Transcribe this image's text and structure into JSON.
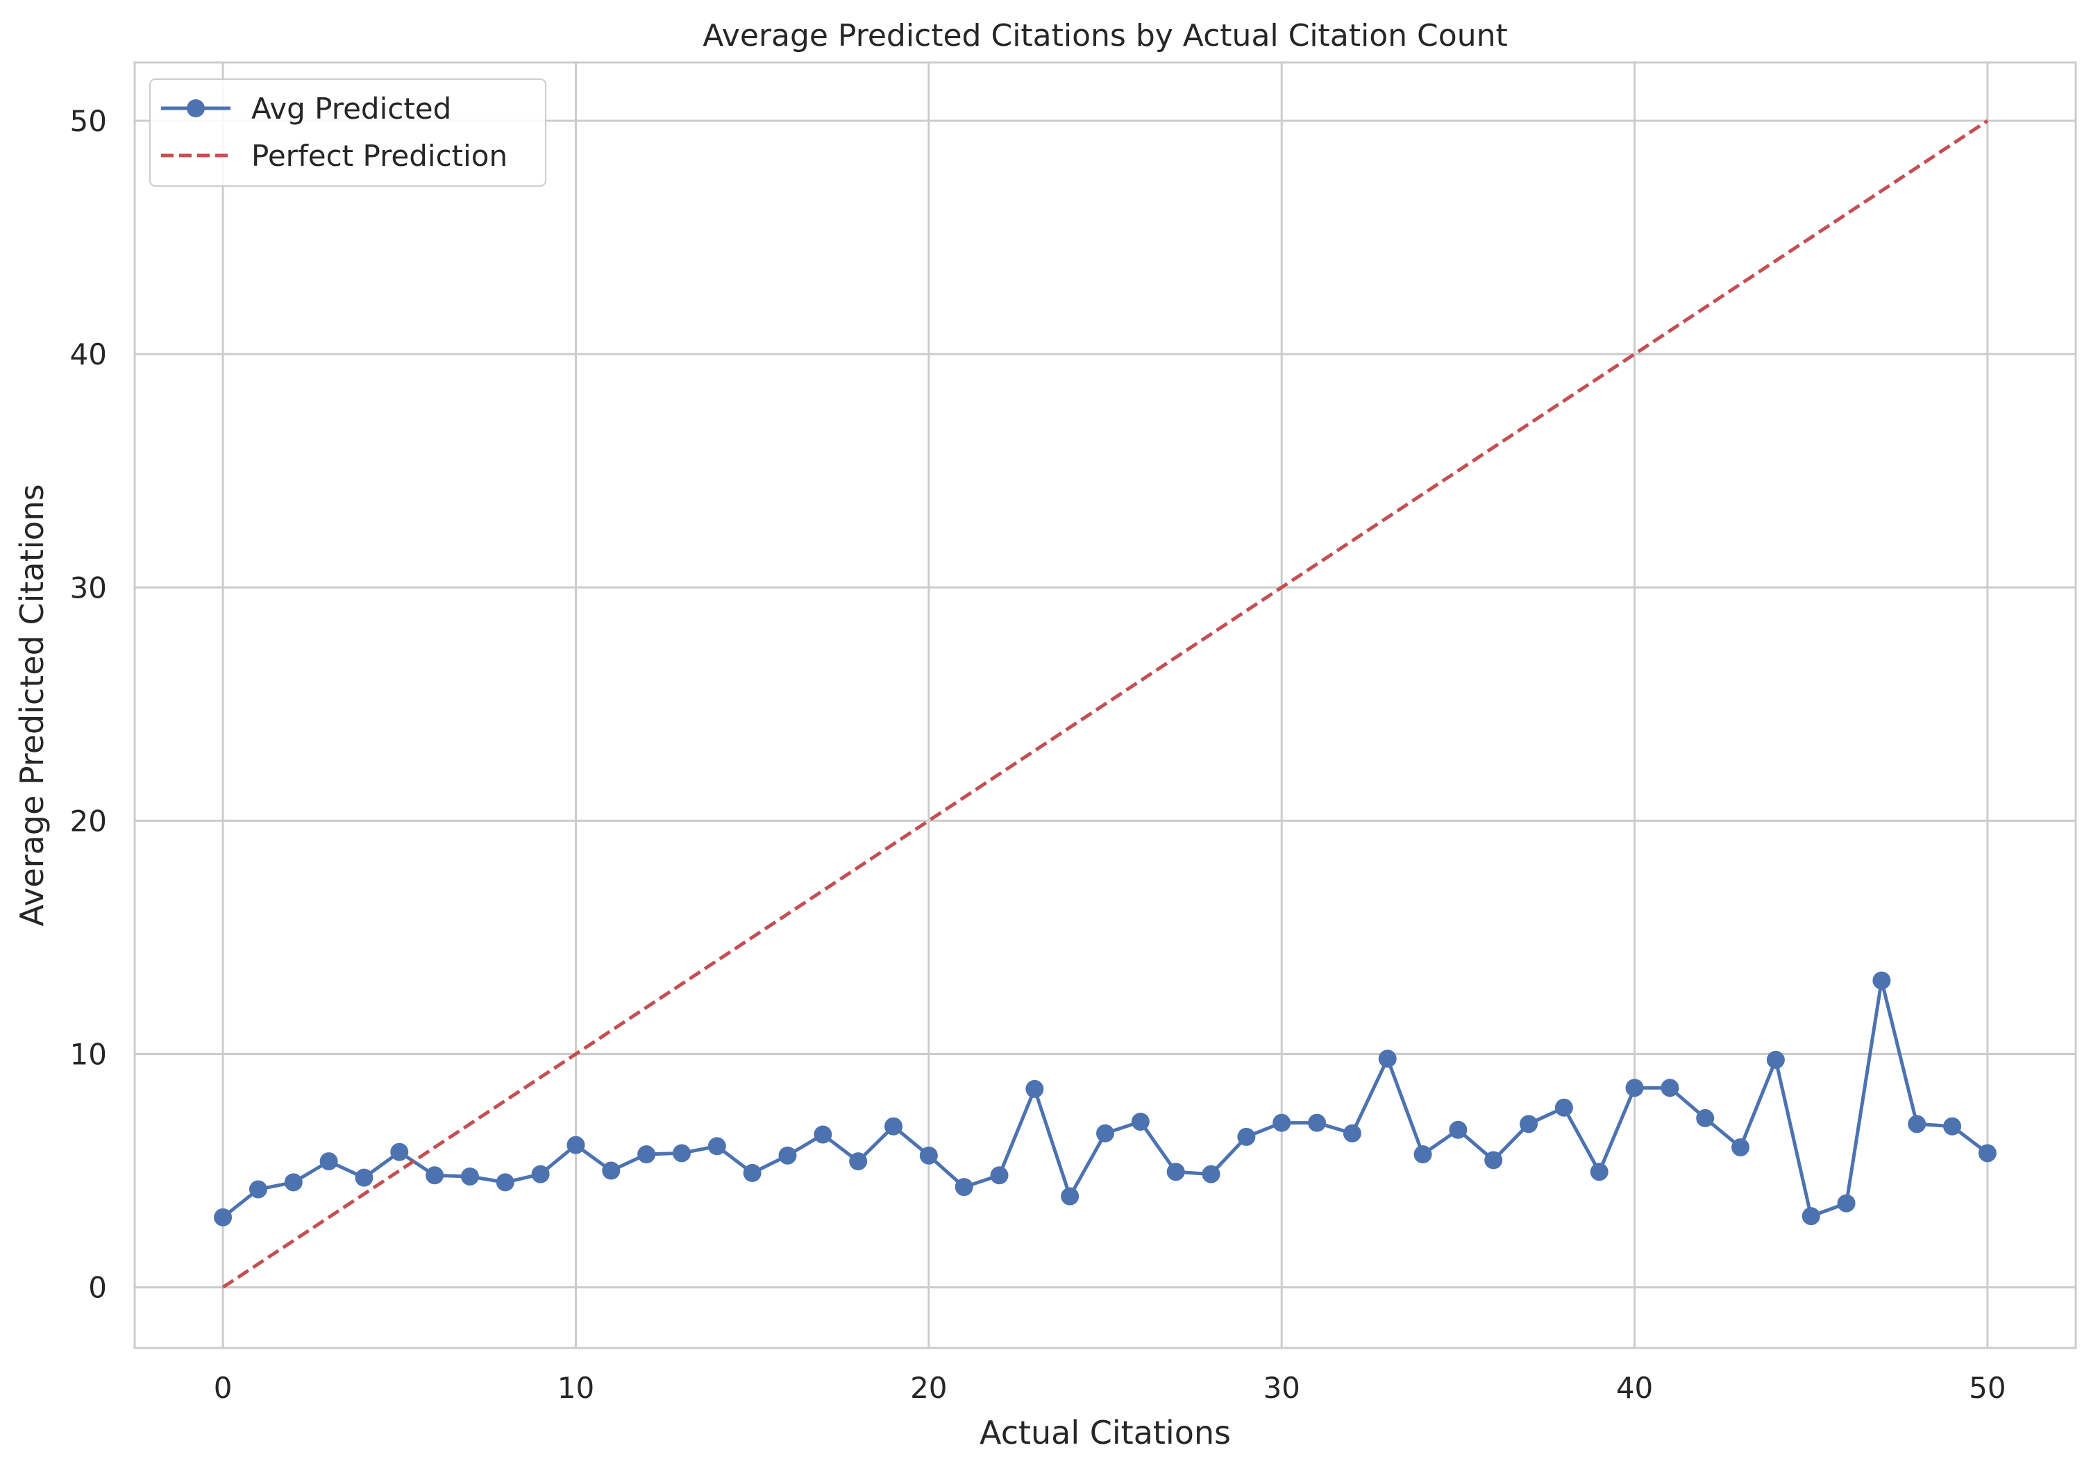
{
  "chart_data": {
    "type": "line",
    "title": "Average Predicted Citations by Actual Citation Count",
    "xlabel": "Actual Citations",
    "ylabel": "Average Predicted Citations",
    "xlim": [
      -2.5,
      52.5
    ],
    "ylim": [
      -2.6,
      52.5
    ],
    "xticks": [
      0,
      10,
      20,
      30,
      40,
      50
    ],
    "yticks": [
      0,
      10,
      20,
      30,
      40,
      50
    ],
    "grid": true,
    "legend_position": "top-left",
    "series": [
      {
        "name": "Avg Predicted",
        "style": "solid-line-with-circle-markers",
        "color": "#4c72b0",
        "x": [
          0,
          1,
          2,
          3,
          4,
          5,
          6,
          7,
          8,
          9,
          10,
          11,
          12,
          13,
          14,
          15,
          16,
          17,
          18,
          19,
          20,
          21,
          22,
          23,
          24,
          25,
          26,
          27,
          28,
          29,
          30,
          31,
          32,
          33,
          34,
          35,
          36,
          37,
          38,
          39,
          40,
          41,
          42,
          43,
          44,
          45,
          46,
          47,
          48,
          49,
          50
        ],
        "y": [
          3.0,
          4.2,
          4.5,
          5.4,
          4.7,
          5.8,
          4.8,
          4.75,
          4.5,
          4.85,
          6.1,
          5.0,
          5.7,
          5.75,
          6.05,
          4.9,
          5.65,
          6.55,
          5.4,
          6.9,
          5.65,
          4.3,
          4.8,
          8.5,
          3.9,
          6.6,
          7.1,
          4.95,
          4.85,
          6.45,
          7.05,
          7.05,
          6.6,
          9.8,
          5.7,
          6.75,
          5.45,
          7.0,
          7.7,
          4.95,
          8.55,
          8.55,
          7.25,
          6.0,
          9.75,
          3.05,
          3.6,
          13.15,
          7.0,
          6.9,
          5.75
        ]
      },
      {
        "name": "Perfect Prediction",
        "style": "dashed-line",
        "color": "#c44e52",
        "x": [
          0,
          50
        ],
        "y": [
          0,
          50
        ]
      }
    ]
  }
}
